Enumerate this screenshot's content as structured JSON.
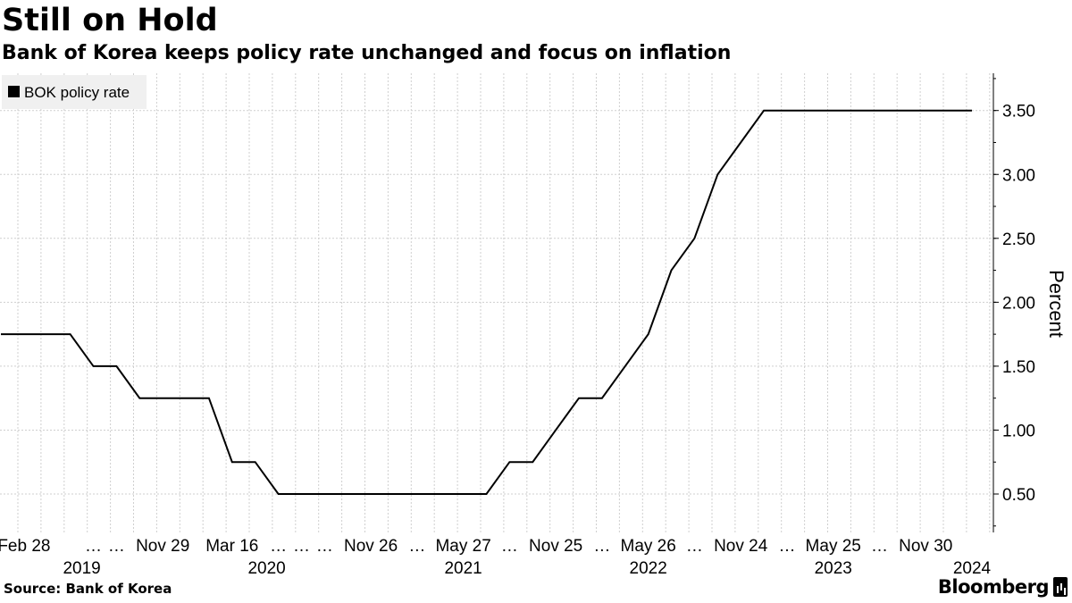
{
  "title": "Still on Hold",
  "subtitle": "Bank of Korea keeps policy rate unchanged and focus on inflation",
  "source": "Source:  Bank of Korea",
  "brand": "Bloomberg",
  "colors": {
    "line": "#000000",
    "grid": "#cfcfcf",
    "legend_bg": "#f0f0f0",
    "axis": "#000000"
  },
  "chart_data": {
    "type": "line",
    "ylabel": "Percent",
    "ylim": [
      0.25,
      3.8
    ],
    "yticks": [
      "0.50",
      "1.00",
      "1.50",
      "2.00",
      "2.50",
      "3.00",
      "3.50"
    ],
    "y_axis_side": "right",
    "grid": true,
    "legend_position": "top-left",
    "x_axis": "meeting sequence (categorical)",
    "x_tick_labels": [
      {
        "label": "Feb 28",
        "index": 1
      },
      {
        "label": "…",
        "index": 4
      },
      {
        "label": "…",
        "index": 5
      },
      {
        "label": "Nov 29",
        "index": 7
      },
      {
        "label": "Mar 16",
        "index": 10
      },
      {
        "label": "…",
        "index": 12
      },
      {
        "label": "…",
        "index": 13
      },
      {
        "label": "…",
        "index": 14
      },
      {
        "label": "Nov 26",
        "index": 16
      },
      {
        "label": "…",
        "index": 18
      },
      {
        "label": "May 27",
        "index": 20
      },
      {
        "label": "…",
        "index": 22
      },
      {
        "label": "Nov 25",
        "index": 24
      },
      {
        "label": "…",
        "index": 26
      },
      {
        "label": "May 26",
        "index": 28
      },
      {
        "label": "…",
        "index": 30
      },
      {
        "label": "Nov 24",
        "index": 32
      },
      {
        "label": "…",
        "index": 34
      },
      {
        "label": "May 25",
        "index": 36
      },
      {
        "label": "…",
        "index": 38
      },
      {
        "label": "Nov 30",
        "index": 40
      }
    ],
    "year_labels": [
      {
        "label": "2019",
        "index": 3.5
      },
      {
        "label": "2020",
        "index": 11.5
      },
      {
        "label": "2021",
        "index": 20
      },
      {
        "label": "2022",
        "index": 28
      },
      {
        "label": "2023",
        "index": 36
      },
      {
        "label": "2024",
        "index": 42
      }
    ],
    "series": [
      {
        "name": "BOK policy rate",
        "values": [
          1.75,
          1.75,
          1.75,
          1.75,
          1.5,
          1.5,
          1.25,
          1.25,
          1.25,
          1.25,
          0.75,
          0.75,
          0.5,
          0.5,
          0.5,
          0.5,
          0.5,
          0.5,
          0.5,
          0.5,
          0.5,
          0.5,
          0.75,
          0.75,
          1.0,
          1.25,
          1.25,
          1.5,
          1.75,
          2.25,
          2.5,
          3.0,
          3.25,
          3.5,
          3.5,
          3.5,
          3.5,
          3.5,
          3.5,
          3.5,
          3.5,
          3.5,
          3.5
        ]
      }
    ]
  }
}
